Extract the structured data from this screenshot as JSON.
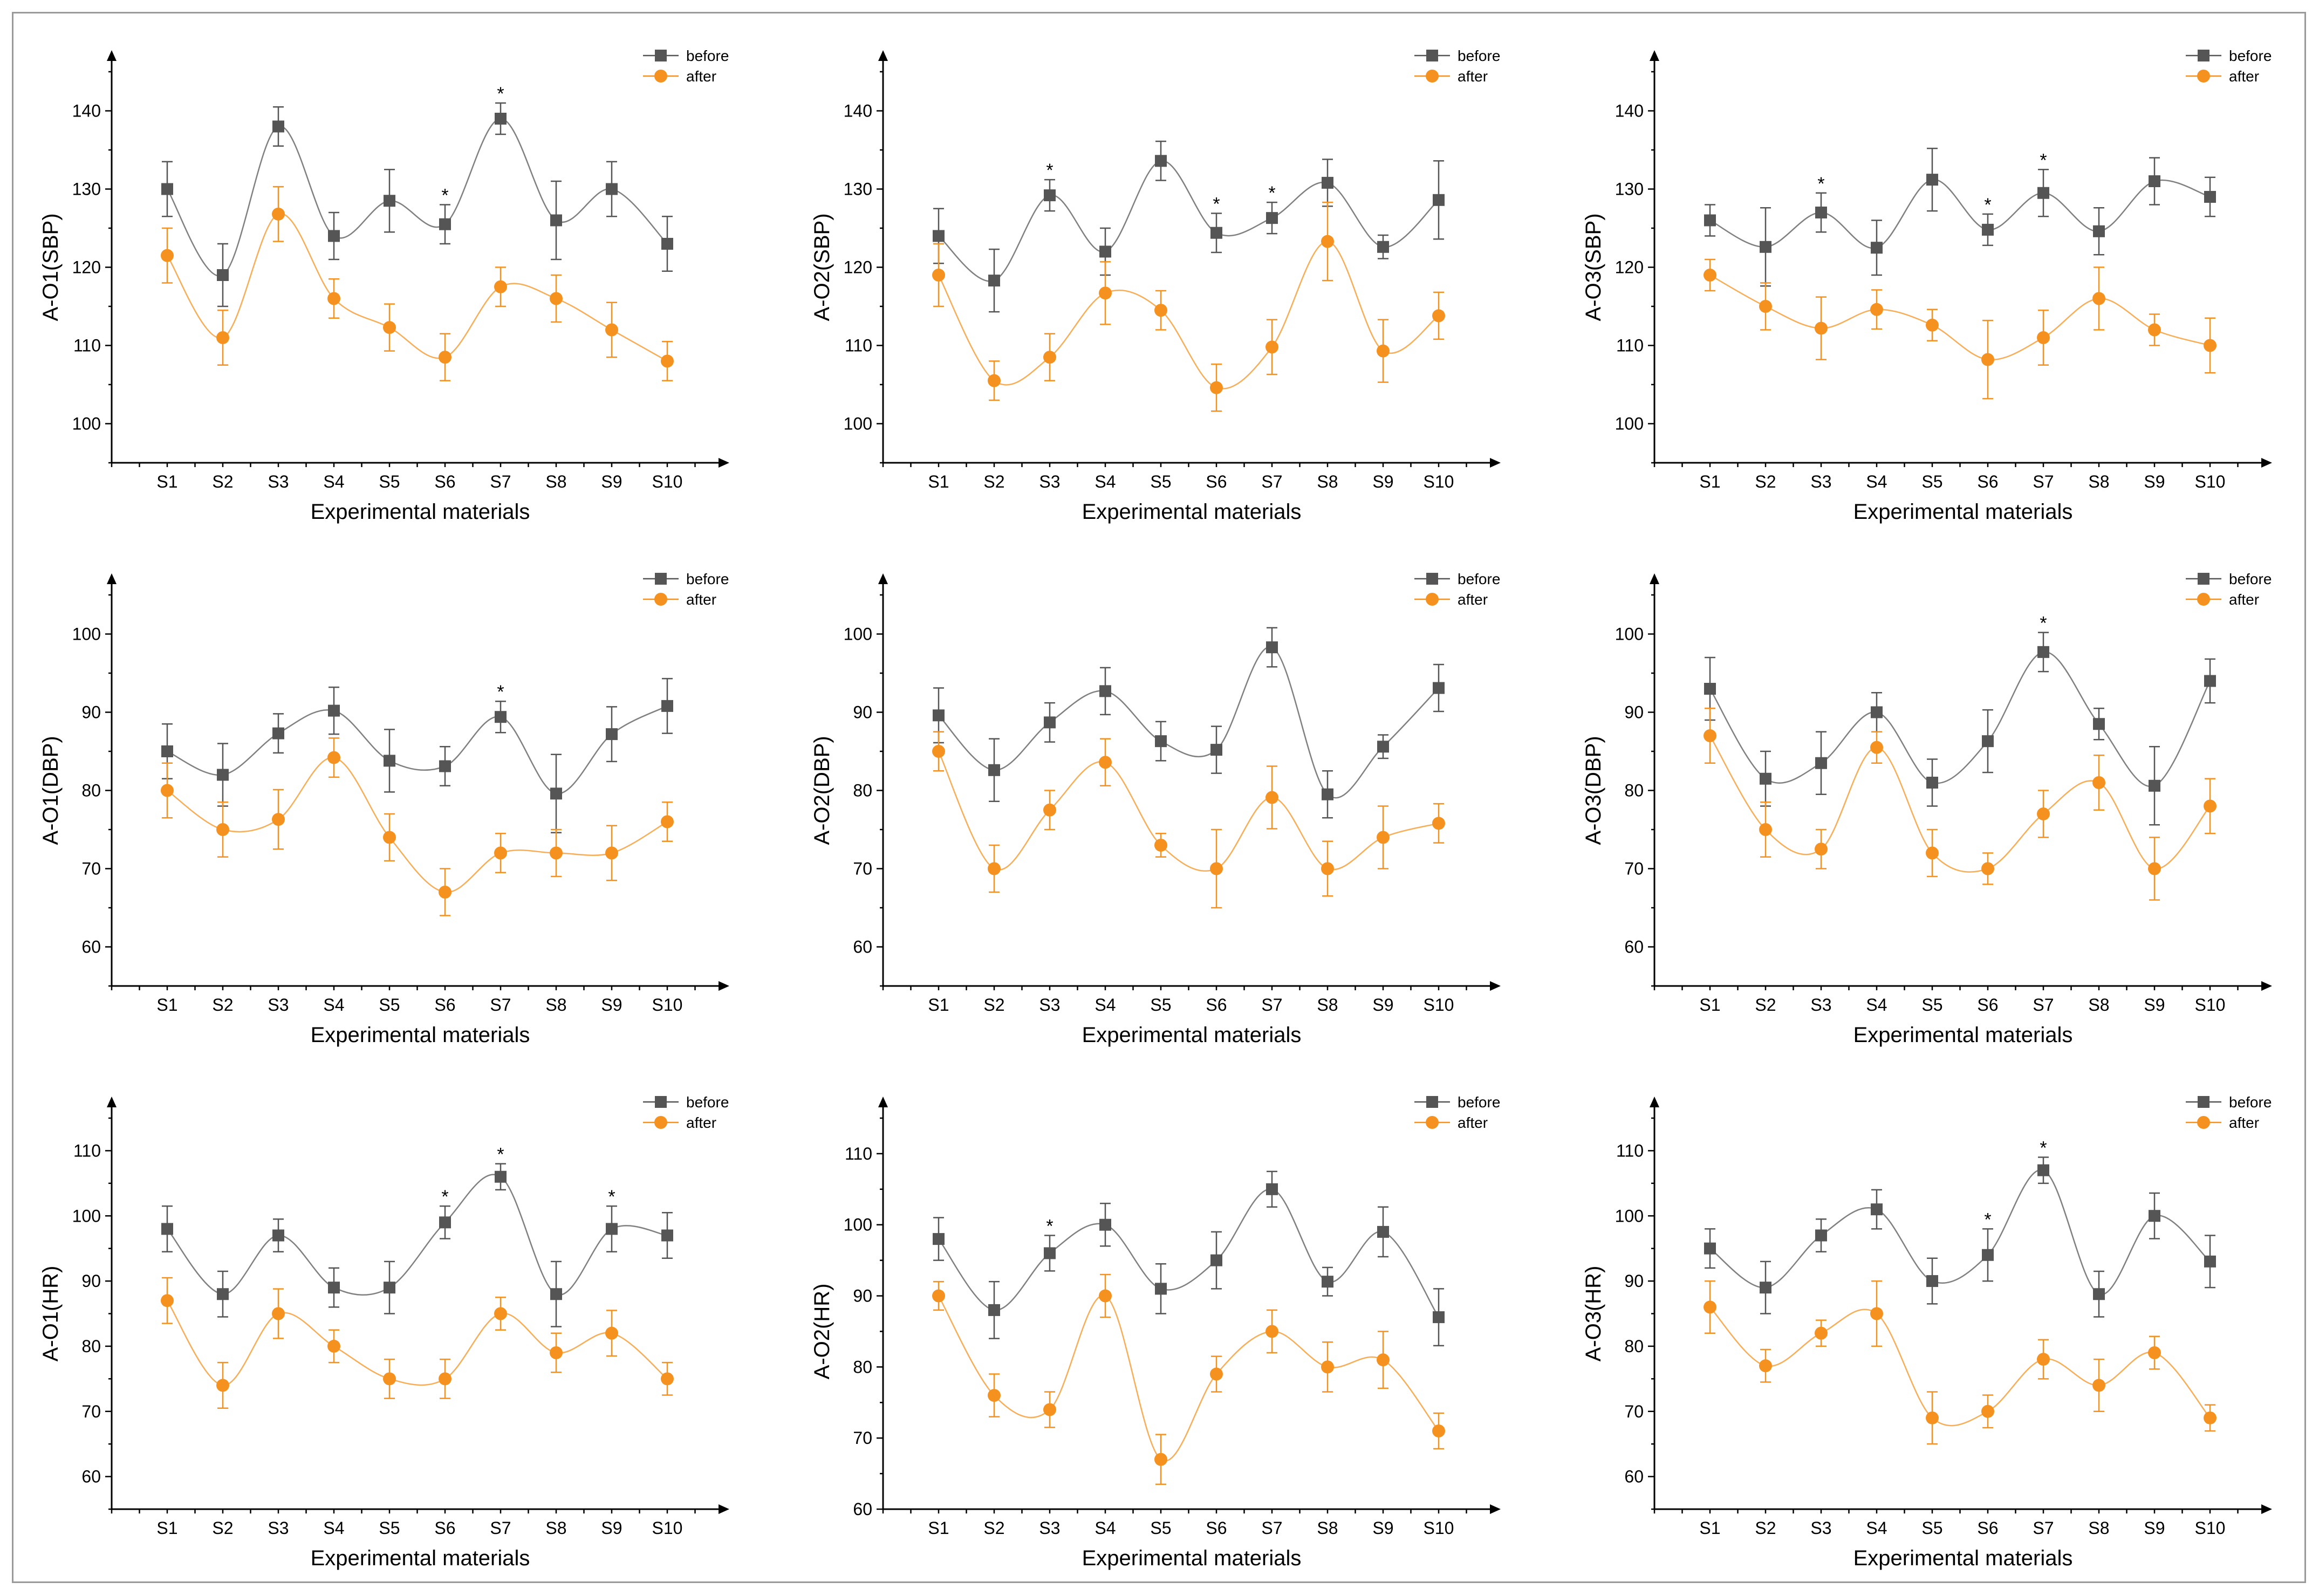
{
  "colors": {
    "before": "#555555",
    "after": "#f5921f"
  },
  "chart_data": [
    {
      "type": "line",
      "ylabel": "A-O1(SBP)",
      "xlabel": "Experimental materials",
      "ylim": [
        95,
        145
      ],
      "yticks": [
        100,
        110,
        120,
        130,
        140
      ],
      "categories": [
        "S1",
        "S2",
        "S3",
        "S4",
        "S5",
        "S6",
        "S7",
        "S8",
        "S9",
        "S10"
      ],
      "legend_position": "top-right",
      "series": [
        {
          "name": "before",
          "marker": "square",
          "values": [
            130,
            119,
            138,
            124,
            128.5,
            125.5,
            139,
            126,
            130,
            123
          ],
          "errors": [
            3.5,
            4,
            2.5,
            3,
            4,
            2.5,
            2,
            5,
            3.5,
            3.5
          ]
        },
        {
          "name": "after",
          "marker": "circle",
          "values": [
            121.5,
            111,
            126.8,
            116,
            112.3,
            108.5,
            117.5,
            116,
            112,
            108
          ],
          "errors": [
            3.5,
            3.5,
            3.5,
            2.5,
            3,
            3,
            2.5,
            3,
            3.5,
            2.5
          ]
        }
      ],
      "significance": [
        "S6",
        "S7"
      ],
      "significance_mark": "*"
    },
    {
      "type": "line",
      "ylabel": "A-O2(SBP)",
      "xlabel": "Experimental materials",
      "ylim": [
        95,
        145
      ],
      "yticks": [
        100,
        110,
        120,
        130,
        140
      ],
      "categories": [
        "S1",
        "S2",
        "S3",
        "S4",
        "S5",
        "S6",
        "S7",
        "S8",
        "S9",
        "S10"
      ],
      "legend_position": "top-right",
      "series": [
        {
          "name": "before",
          "marker": "square",
          "values": [
            124,
            118.3,
            129.2,
            122,
            133.6,
            124.4,
            126.3,
            130.8,
            122.6,
            128.6
          ],
          "errors": [
            3.5,
            4,
            2,
            3,
            2.5,
            2.5,
            2,
            3,
            1.5,
            5
          ]
        },
        {
          "name": "after",
          "marker": "circle",
          "values": [
            119,
            105.5,
            108.5,
            116.7,
            114.5,
            104.6,
            109.8,
            123.3,
            109.3,
            113.8
          ],
          "errors": [
            4,
            2.5,
            3,
            4,
            2.5,
            3,
            3.5,
            5,
            4,
            3
          ]
        }
      ],
      "significance": [
        "S3",
        "S6",
        "S7"
      ],
      "significance_mark": "*"
    },
    {
      "type": "line",
      "ylabel": "A-O3(SBP)",
      "xlabel": "Experimental materials",
      "ylim": [
        95,
        145
      ],
      "yticks": [
        100,
        110,
        120,
        130,
        140
      ],
      "categories": [
        "S1",
        "S2",
        "S3",
        "S4",
        "S5",
        "S6",
        "S7",
        "S8",
        "S9",
        "S10"
      ],
      "legend_position": "top-right",
      "series": [
        {
          "name": "before",
          "marker": "square",
          "values": [
            126,
            122.6,
            127,
            122.5,
            131.2,
            124.8,
            129.5,
            124.6,
            131,
            129
          ],
          "errors": [
            2,
            5,
            2.5,
            3.5,
            4,
            2,
            3,
            3,
            3,
            2.5
          ]
        },
        {
          "name": "after",
          "marker": "circle",
          "values": [
            119,
            115,
            112.2,
            114.6,
            112.6,
            108.2,
            111,
            116,
            112,
            110
          ],
          "errors": [
            2,
            3,
            4,
            2.5,
            2,
            5,
            3.5,
            4,
            2,
            3.5
          ]
        }
      ],
      "significance": [
        "S3",
        "S6",
        "S7"
      ],
      "significance_mark": "*"
    },
    {
      "type": "line",
      "ylabel": "A-O1(DBP)",
      "xlabel": "Experimental materials",
      "ylim": [
        55,
        105
      ],
      "yticks": [
        60,
        70,
        80,
        90,
        100
      ],
      "categories": [
        "S1",
        "S2",
        "S3",
        "S4",
        "S5",
        "S6",
        "S7",
        "S8",
        "S9",
        "S10"
      ],
      "legend_position": "top-right",
      "series": [
        {
          "name": "before",
          "marker": "square",
          "values": [
            85,
            82,
            87.3,
            90.2,
            83.8,
            83.1,
            89.4,
            79.6,
            87.2,
            90.8
          ],
          "errors": [
            3.5,
            4,
            2.5,
            3,
            4,
            2.5,
            2,
            5,
            3.5,
            3.5
          ]
        },
        {
          "name": "after",
          "marker": "circle",
          "values": [
            80,
            75,
            76.3,
            84.2,
            74,
            67,
            72,
            72,
            72,
            76
          ],
          "errors": [
            3.5,
            3.5,
            3.8,
            2.5,
            3,
            3,
            2.5,
            3,
            3.5,
            2.5
          ]
        }
      ],
      "significance": [
        "S7"
      ],
      "significance_mark": "*"
    },
    {
      "type": "line",
      "ylabel": "A-O2(DBP)",
      "xlabel": "Experimental materials",
      "ylim": [
        55,
        105
      ],
      "yticks": [
        60,
        70,
        80,
        90,
        100
      ],
      "categories": [
        "S1",
        "S2",
        "S3",
        "S4",
        "S5",
        "S6",
        "S7",
        "S8",
        "S9",
        "S10"
      ],
      "legend_position": "top-right",
      "series": [
        {
          "name": "before",
          "marker": "square",
          "values": [
            89.6,
            82.6,
            88.7,
            92.7,
            86.3,
            85.2,
            98.3,
            79.5,
            85.6,
            93.1
          ],
          "errors": [
            3.5,
            4,
            2.5,
            3,
            2.5,
            3,
            2.5,
            3,
            1.5,
            3
          ]
        },
        {
          "name": "after",
          "marker": "circle",
          "values": [
            85,
            70,
            77.5,
            83.6,
            73,
            70,
            79.1,
            70,
            74,
            75.8
          ],
          "errors": [
            2.5,
            3,
            2.5,
            3,
            1.5,
            5,
            4,
            3.5,
            4,
            2.5
          ]
        }
      ],
      "significance": [],
      "significance_mark": "*"
    },
    {
      "type": "line",
      "ylabel": "A-O3(DBP)",
      "xlabel": "Experimental materials",
      "ylim": [
        55,
        105
      ],
      "yticks": [
        60,
        70,
        80,
        90,
        100
      ],
      "categories": [
        "S1",
        "S2",
        "S3",
        "S4",
        "S5",
        "S6",
        "S7",
        "S8",
        "S9",
        "S10"
      ],
      "legend_position": "top-right",
      "series": [
        {
          "name": "before",
          "marker": "square",
          "values": [
            93,
            81.5,
            83.5,
            90,
            81,
            86.3,
            97.7,
            88.5,
            80.6,
            94
          ],
          "errors": [
            4,
            3.5,
            4,
            2.5,
            3,
            4,
            2.5,
            2,
            5,
            2.8
          ]
        },
        {
          "name": "after",
          "marker": "circle",
          "values": [
            87,
            75,
            72.5,
            85.5,
            72,
            70,
            77,
            81,
            70,
            78
          ],
          "errors": [
            3.5,
            3.5,
            2.5,
            2,
            3,
            2,
            3,
            3.5,
            4,
            3.5
          ]
        }
      ],
      "significance": [
        "S7"
      ],
      "significance_mark": "*"
    },
    {
      "type": "line",
      "ylabel": "A-O1(HR)",
      "xlabel": "Experimental materials",
      "ylim": [
        55,
        115
      ],
      "yticks": [
        60,
        70,
        80,
        90,
        100,
        110
      ],
      "categories": [
        "S1",
        "S2",
        "S3",
        "S4",
        "S5",
        "S6",
        "S7",
        "S8",
        "S9",
        "S10"
      ],
      "legend_position": "top-right",
      "series": [
        {
          "name": "before",
          "marker": "square",
          "values": [
            98,
            88,
            97,
            89,
            89,
            99,
            106,
            88,
            98,
            97
          ],
          "errors": [
            3.5,
            3.5,
            2.5,
            3,
            4,
            2.5,
            2,
            5,
            3.5,
            3.5
          ]
        },
        {
          "name": "after",
          "marker": "circle",
          "values": [
            87,
            74,
            85,
            80,
            75,
            75,
            85,
            79,
            82,
            75
          ],
          "errors": [
            3.5,
            3.5,
            3.8,
            2.5,
            3,
            3,
            2.5,
            3,
            3.5,
            2.5
          ]
        }
      ],
      "significance": [
        "S6",
        "S7",
        "S9"
      ],
      "significance_mark": "*"
    },
    {
      "type": "line",
      "ylabel": "A-O2(HR)",
      "xlabel": "Experimental materials",
      "ylim": [
        60,
        115
      ],
      "yticks": [
        60,
        70,
        80,
        90,
        100,
        110
      ],
      "categories": [
        "S1",
        "S2",
        "S3",
        "S4",
        "S5",
        "S6",
        "S7",
        "S8",
        "S9",
        "S10"
      ],
      "legend_position": "top-right",
      "series": [
        {
          "name": "before",
          "marker": "square",
          "values": [
            98,
            88,
            96,
            100,
            91,
            95,
            105,
            92,
            99,
            87
          ],
          "errors": [
            3,
            4,
            2.5,
            3,
            3.5,
            4,
            2.5,
            2,
            3.5,
            4
          ]
        },
        {
          "name": "after",
          "marker": "circle",
          "values": [
            90,
            76,
            74,
            90,
            67,
            79,
            85,
            80,
            81,
            71
          ],
          "errors": [
            2,
            3,
            2.5,
            3,
            3.5,
            2.5,
            3,
            3.5,
            4,
            2.5
          ]
        }
      ],
      "significance": [
        "S3"
      ],
      "significance_mark": "*"
    },
    {
      "type": "line",
      "ylabel": "A-O3(HR)",
      "xlabel": "Experimental materials",
      "ylim": [
        55,
        115
      ],
      "yticks": [
        60,
        70,
        80,
        90,
        100,
        110
      ],
      "categories": [
        "S1",
        "S2",
        "S3",
        "S4",
        "S5",
        "S6",
        "S7",
        "S8",
        "S9",
        "S10"
      ],
      "legend_position": "top-right",
      "series": [
        {
          "name": "before",
          "marker": "square",
          "values": [
            95,
            89,
            97,
            101,
            90,
            94,
            107,
            88,
            100,
            93
          ],
          "errors": [
            3,
            4,
            2.5,
            3,
            3.5,
            4,
            2,
            3.5,
            3.5,
            4
          ]
        },
        {
          "name": "after",
          "marker": "circle",
          "values": [
            86,
            77,
            82,
            85,
            69,
            70,
            78,
            74,
            79,
            69
          ],
          "errors": [
            4,
            2.5,
            2,
            5,
            4,
            2.5,
            3,
            4,
            2.5,
            2
          ]
        }
      ],
      "significance": [
        "S6",
        "S7"
      ],
      "significance_mark": "*"
    }
  ]
}
